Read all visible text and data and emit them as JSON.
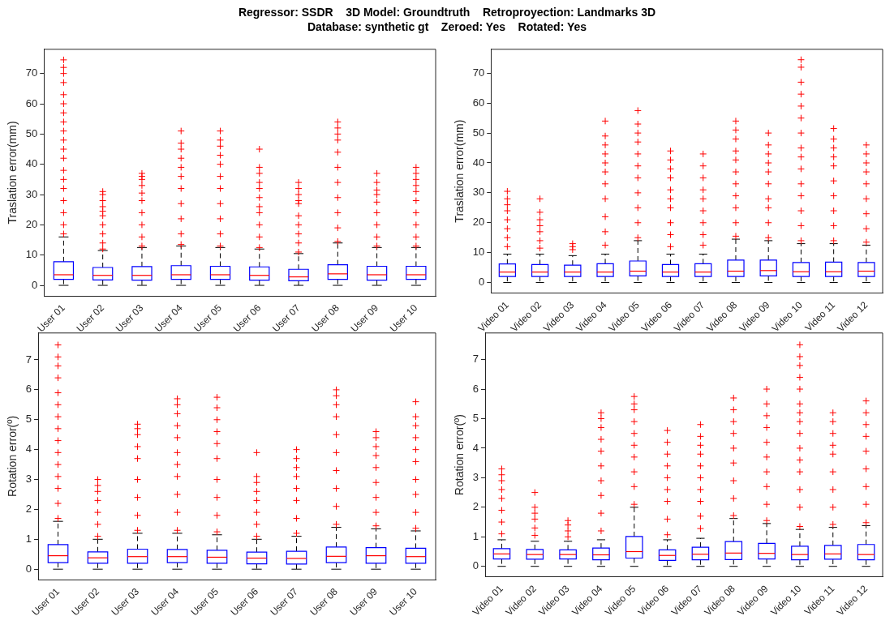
{
  "chart_data": [
    {
      "type": "box",
      "title": "Regressor: SSDR    3D Model: Groundtruth    Retroproyection: Landmarks 3D",
      "subtitle": "Database: synthetic gt    Zeroed: Yes    Rotated: Yes",
      "ylabel": "Traslation error(mm)",
      "categories": [
        "User 01",
        "User 02",
        "User 03",
        "User 04",
        "User 05",
        "User 06",
        "User 07",
        "User 08",
        "User 09",
        "User 10"
      ],
      "ylim": [
        -3.5,
        78
      ],
      "yticks": [
        0,
        10,
        20,
        30,
        40,
        50,
        60,
        70
      ],
      "grid": false,
      "marker": "cross",
      "series": [
        {
          "color": "#0000ff",
          "boxes": [
            {
              "low": 0,
              "q1": 2,
              "median": 3.5,
              "q3": 7.8,
              "high": 16,
              "outliers": [
                17,
                20,
                24,
                28,
                32,
                35,
                38,
                42,
                45,
                48,
                51,
                54,
                57,
                60,
                63,
                67,
                70,
                72,
                74.5
              ]
            },
            {
              "low": 0,
              "q1": 1.8,
              "median": 3.3,
              "q3": 5.9,
              "high": 11.5,
              "outliers": [
                12,
                14,
                17,
                20,
                23,
                24.5,
                26,
                28,
                30,
                31
              ]
            },
            {
              "low": 0,
              "q1": 1.7,
              "median": 3.3,
              "q3": 6.2,
              "high": 12.5,
              "outliers": [
                13,
                16,
                20,
                24,
                28,
                30.5,
                33,
                35,
                36,
                37
              ]
            },
            {
              "low": 0,
              "q1": 2,
              "median": 3.5,
              "q3": 6.5,
              "high": 13,
              "outliers": [
                13.5,
                17,
                22,
                27,
                32,
                36,
                39,
                42,
                45,
                47,
                51
              ]
            },
            {
              "low": 0,
              "q1": 2,
              "median": 3.5,
              "q3": 6.3,
              "high": 12.5,
              "outliers": [
                13,
                17,
                22,
                27,
                32,
                36,
                40,
                43,
                46,
                48,
                51
              ]
            },
            {
              "low": 0,
              "q1": 1.7,
              "median": 3.3,
              "q3": 6.1,
              "high": 12,
              "outliers": [
                12.5,
                16,
                20,
                24,
                26,
                29,
                32,
                34,
                37,
                39,
                45
              ]
            },
            {
              "low": 0,
              "q1": 1.5,
              "median": 2.8,
              "q3": 5.3,
              "high": 10.5,
              "outliers": [
                11,
                14,
                17,
                20,
                23,
                27,
                28,
                30,
                32,
                34
              ]
            },
            {
              "low": 0,
              "q1": 2,
              "median": 3.8,
              "q3": 6.8,
              "high": 14,
              "outliers": [
                14.5,
                19,
                24,
                29,
                34,
                39,
                44,
                48,
                50,
                52,
                54
              ]
            },
            {
              "low": 0,
              "q1": 1.7,
              "median": 3.5,
              "q3": 6.3,
              "high": 12.5,
              "outliers": [
                13,
                16,
                20,
                24,
                27.5,
                30,
                31.5,
                34,
                37
              ]
            },
            {
              "low": 0,
              "q1": 2,
              "median": 3.5,
              "q3": 6.3,
              "high": 12.5,
              "outliers": [
                13,
                16,
                20,
                24,
                28,
                31,
                33,
                35,
                37,
                39
              ]
            }
          ]
        }
      ]
    },
    {
      "type": "box",
      "ylabel": "Traslation error(mm)",
      "categories": [
        "Video 01",
        "Video 02",
        "Video 03",
        "Video 04",
        "Video 05",
        "Video 06",
        "Video 07",
        "Video 08",
        "Video 09",
        "Video 10",
        "Video 11",
        "Video 12"
      ],
      "ylim": [
        -3.5,
        78
      ],
      "yticks": [
        0,
        10,
        20,
        30,
        40,
        50,
        60,
        70
      ],
      "grid": false,
      "marker": "cross",
      "series": [
        {
          "color": "#0000ff",
          "boxes": [
            {
              "low": 0,
              "q1": 2,
              "median": 3.5,
              "q3": 6.2,
              "high": 9.5,
              "outliers": [
                12,
                15,
                18,
                21,
                24,
                26,
                28,
                30.5
              ]
            },
            {
              "low": 0,
              "q1": 2,
              "median": 3.5,
              "q3": 6,
              "high": 9.5,
              "outliers": [
                11.5,
                14,
                17,
                19,
                21,
                23.5,
                28
              ]
            },
            {
              "low": 0,
              "q1": 2,
              "median": 3.5,
              "q3": 5.8,
              "high": 9,
              "outliers": [
                11,
                12,
                13
              ]
            },
            {
              "low": 0,
              "q1": 2,
              "median": 3.5,
              "q3": 6.3,
              "high": 9.5,
              "outliers": [
                12.5,
                17,
                22,
                28,
                33,
                37,
                40,
                43,
                46,
                49,
                54
              ]
            },
            {
              "low": 0,
              "q1": 2.2,
              "median": 3.8,
              "q3": 7.2,
              "high": 14,
              "outliers": [
                15,
                20,
                25,
                30,
                35,
                39,
                43,
                47,
                50,
                53,
                57.5
              ]
            },
            {
              "low": 0,
              "q1": 2,
              "median": 3.5,
              "q3": 6,
              "high": 9.5,
              "outliers": [
                12,
                16,
                20,
                25,
                28,
                31,
                35,
                38,
                41,
                44
              ]
            },
            {
              "low": 0,
              "q1": 2,
              "median": 3.5,
              "q3": 6.3,
              "high": 9.5,
              "outliers": [
                12.5,
                16,
                20,
                24,
                28,
                31,
                35,
                39,
                43
              ]
            },
            {
              "low": 0,
              "q1": 2,
              "median": 3.8,
              "q3": 7.5,
              "high": 14.5,
              "outliers": [
                15.5,
                20,
                25,
                29,
                33,
                37,
                41,
                44,
                48,
                51,
                54
              ]
            },
            {
              "low": 0,
              "q1": 2.2,
              "median": 4,
              "q3": 7.5,
              "high": 14,
              "outliers": [
                15,
                20,
                25,
                28,
                33,
                37,
                40,
                43,
                46,
                50
              ]
            },
            {
              "low": 0,
              "q1": 2,
              "median": 3.6,
              "q3": 6.7,
              "high": 13,
              "outliers": [
                14,
                19,
                24,
                29,
                33,
                38,
                42,
                45,
                50,
                55,
                59,
                63,
                67,
                72,
                74.5
              ]
            },
            {
              "low": 0,
              "q1": 2,
              "median": 3.6,
              "q3": 6.8,
              "high": 13,
              "outliers": [
                14,
                19,
                24,
                29,
                34,
                39,
                42,
                45,
                48,
                51.5
              ]
            },
            {
              "low": 0,
              "q1": 2,
              "median": 3.8,
              "q3": 6.7,
              "high": 12.5,
              "outliers": [
                13.5,
                18,
                23,
                28,
                33,
                37,
                40,
                43,
                46
              ]
            }
          ]
        }
      ]
    },
    {
      "type": "box",
      "ylabel": "Rotation error(º)",
      "categories": [
        "User 01",
        "User 02",
        "User 03",
        "User 04",
        "User 05",
        "User 06",
        "User 07",
        "User 08",
        "User 09",
        "User 10"
      ],
      "ylim": [
        -0.35,
        7.9
      ],
      "yticks": [
        0,
        1,
        2,
        3,
        4,
        5,
        6,
        7
      ],
      "grid": false,
      "marker": "cross",
      "series": [
        {
          "color": "#0000ff",
          "boxes": [
            {
              "low": 0,
              "q1": 0.22,
              "median": 0.45,
              "q3": 0.82,
              "high": 1.6,
              "outliers": [
                1.7,
                2.2,
                2.7,
                3.1,
                3.5,
                3.9,
                4.3,
                4.7,
                5.1,
                5.5,
                5.9,
                6.4,
                6.8,
                7.1,
                7.5
              ]
            },
            {
              "low": 0,
              "q1": 0.2,
              "median": 0.38,
              "q3": 0.58,
              "high": 1.0,
              "outliers": [
                1.1,
                1.5,
                1.9,
                2.3,
                2.6,
                2.8,
                3
              ]
            },
            {
              "low": 0,
              "q1": 0.2,
              "median": 0.42,
              "q3": 0.67,
              "high": 1.2,
              "outliers": [
                1.3,
                1.8,
                2.4,
                3,
                3.7,
                4.1,
                4.5,
                4.7,
                4.85
              ]
            },
            {
              "low": 0,
              "q1": 0.22,
              "median": 0.42,
              "q3": 0.66,
              "high": 1.2,
              "outliers": [
                1.3,
                1.9,
                2.5,
                3.1,
                3.5,
                3.9,
                4.4,
                4.8,
                5.2,
                5.5,
                5.7
              ]
            },
            {
              "low": 0,
              "q1": 0.2,
              "median": 0.4,
              "q3": 0.63,
              "high": 1.15,
              "outliers": [
                1.25,
                1.8,
                2.4,
                3,
                3.7,
                4.2,
                4.6,
                5,
                5.4,
                5.75
              ]
            },
            {
              "low": 0,
              "q1": 0.18,
              "median": 0.37,
              "q3": 0.57,
              "high": 1.0,
              "outliers": [
                1.1,
                1.5,
                1.9,
                2.3,
                2.6,
                2.9,
                3.1,
                3.9
              ]
            },
            {
              "low": 0,
              "q1": 0.17,
              "median": 0.36,
              "q3": 0.6,
              "high": 1.1,
              "outliers": [
                1.2,
                1.7,
                2.3,
                2.7,
                3.1,
                3.4,
                3.7,
                4
              ]
            },
            {
              "low": 0,
              "q1": 0.22,
              "median": 0.43,
              "q3": 0.74,
              "high": 1.4,
              "outliers": [
                1.5,
                2.1,
                2.7,
                3.3,
                3.9,
                4.5,
                5.1,
                5.5,
                5.8,
                6
              ]
            },
            {
              "low": 0,
              "q1": 0.2,
              "median": 0.45,
              "q3": 0.72,
              "high": 1.35,
              "outliers": [
                1.45,
                1.9,
                2.4,
                2.9,
                3.4,
                3.8,
                4.1,
                4.4,
                4.6
              ]
            },
            {
              "low": 0,
              "q1": 0.2,
              "median": 0.42,
              "q3": 0.7,
              "high": 1.28,
              "outliers": [
                1.37,
                1.9,
                2.5,
                3,
                3.6,
                4,
                4.4,
                4.8,
                5.1,
                5.6
              ]
            }
          ]
        }
      ]
    },
    {
      "type": "box",
      "ylabel": "Rotation error(º)",
      "categories": [
        "Video 01",
        "Video 02",
        "Video 03",
        "Video 04",
        "Video 05",
        "Video 06",
        "Video 07",
        "Video 08",
        "Video 09",
        "Video 10",
        "Video 11",
        "Video 12"
      ],
      "ylim": [
        -0.35,
        7.9
      ],
      "yticks": [
        0,
        1,
        2,
        3,
        4,
        5,
        6,
        7
      ],
      "grid": false,
      "marker": "cross",
      "series": [
        {
          "color": "#0000ff",
          "boxes": [
            {
              "low": 0,
              "q1": 0.25,
              "median": 0.42,
              "q3": 0.6,
              "high": 0.9,
              "outliers": [
                1.1,
                1.5,
                1.9,
                2.3,
                2.6,
                2.9,
                3.1,
                3.3
              ]
            },
            {
              "low": 0,
              "q1": 0.24,
              "median": 0.4,
              "q3": 0.57,
              "high": 0.85,
              "outliers": [
                1.05,
                1.3,
                1.6,
                1.8,
                2,
                2.5
              ]
            },
            {
              "low": 0,
              "q1": 0.25,
              "median": 0.4,
              "q3": 0.56,
              "high": 0.85,
              "outliers": [
                1,
                1.2,
                1.4,
                1.55
              ]
            },
            {
              "low": 0,
              "q1": 0.22,
              "median": 0.39,
              "q3": 0.62,
              "high": 0.9,
              "outliers": [
                1.2,
                1.8,
                2.4,
                2.9,
                3.4,
                3.9,
                4.3,
                4.7,
                5,
                5.2
              ]
            },
            {
              "low": 0,
              "q1": 0.28,
              "median": 0.5,
              "q3": 1.01,
              "high": 2.0,
              "outliers": [
                2.1,
                2.7,
                3.2,
                3.7,
                4.1,
                4.5,
                4.9,
                5.3,
                5.5,
                5.75
              ]
            },
            {
              "low": 0,
              "q1": 0.2,
              "median": 0.37,
              "q3": 0.56,
              "high": 0.9,
              "outliers": [
                1.07,
                1.6,
                2.2,
                2.6,
                3,
                3.4,
                3.8,
                4.2,
                4.6
              ]
            },
            {
              "low": 0,
              "q1": 0.22,
              "median": 0.41,
              "q3": 0.65,
              "high": 0.95,
              "outliers": [
                1.28,
                1.7,
                2.2,
                2.6,
                3,
                3.4,
                3.8,
                4.1,
                4.4,
                4.8
              ]
            },
            {
              "low": 0,
              "q1": 0.23,
              "median": 0.45,
              "q3": 0.84,
              "high": 1.62,
              "outliers": [
                1.72,
                2.3,
                2.9,
                3.5,
                4,
                4.5,
                4.9,
                5.3,
                5.7
              ]
            },
            {
              "low": 0,
              "q1": 0.25,
              "median": 0.44,
              "q3": 0.78,
              "high": 1.45,
              "outliers": [
                1.55,
                2.1,
                2.7,
                3.2,
                3.7,
                4.2,
                4.7,
                5.1,
                5.5,
                6
              ]
            },
            {
              "low": 0,
              "q1": 0.22,
              "median": 0.4,
              "q3": 0.68,
              "high": 1.25,
              "outliers": [
                1.35,
                2,
                2.6,
                3.2,
                3.6,
                4,
                4.5,
                4.9,
                5.2,
                5.5,
                6,
                6.4,
                6.8,
                7.1,
                7.5
              ]
            },
            {
              "low": 0,
              "q1": 0.24,
              "median": 0.42,
              "q3": 0.71,
              "high": 1.32,
              "outliers": [
                1.42,
                2,
                2.6,
                3.2,
                3.8,
                4.1,
                4.5,
                4.9,
                5.2
              ]
            },
            {
              "low": 0,
              "q1": 0.22,
              "median": 0.4,
              "q3": 0.74,
              "high": 1.38,
              "outliers": [
                1.48,
                2.1,
                2.7,
                3.3,
                3.9,
                4.4,
                4.8,
                5.2,
                5.6
              ]
            }
          ]
        }
      ]
    }
  ]
}
